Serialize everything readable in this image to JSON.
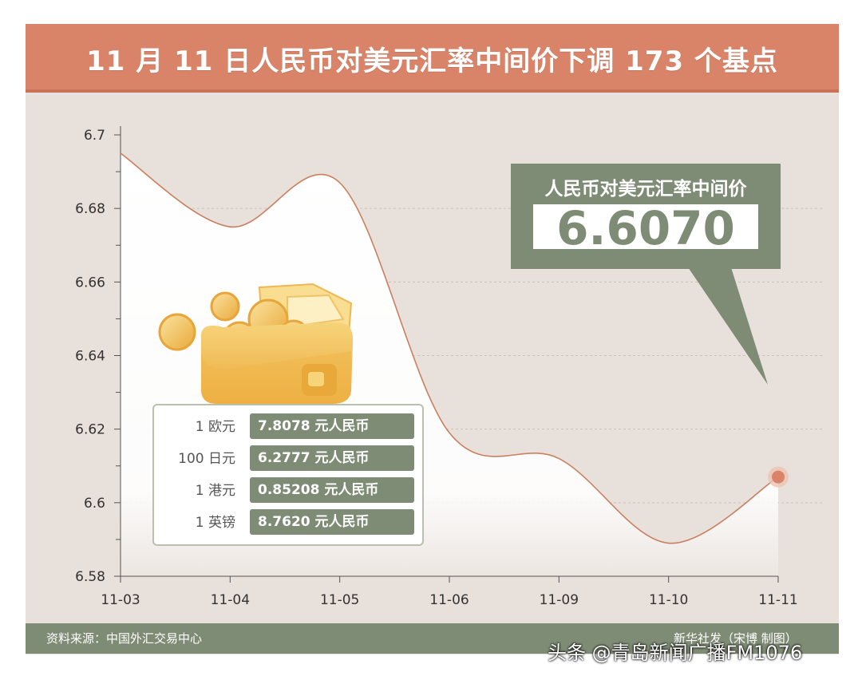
{
  "title": "11 月 11 日人民币对美元汇率中间价下调 173 个基点",
  "chart_data": {
    "type": "line",
    "categories": [
      "11-03",
      "11-04",
      "11-05",
      "11-06",
      "11-09",
      "11-10",
      "11-11"
    ],
    "values": [
      6.695,
      6.675,
      6.687,
      6.619,
      6.612,
      6.589,
      6.607
    ],
    "yticks": [
      "6.7",
      "6.68",
      "6.66",
      "6.64",
      "6.62",
      "6.6",
      "6.58"
    ],
    "ylim": [
      6.58,
      6.7
    ],
    "grid": true,
    "line_color": "#c9805f",
    "marker_color": "#d98369"
  },
  "callout": {
    "title": "人民币对美元汇率中间价",
    "value": "6.6070"
  },
  "rates": [
    {
      "label": "1 欧元",
      "value": "7.8078 元人民币"
    },
    {
      "label": "100 日元",
      "value": "6.2777 元人民币"
    },
    {
      "label": "1 港元",
      "value": "0.85208 元人民币"
    },
    {
      "label": "1 英镑",
      "value": "8.7620 元人民币"
    }
  ],
  "footer": {
    "source": "资料来源：中国外汇交易中心",
    "credit": "新华社发（宋博 制图）"
  },
  "watermark": "头条 @青岛新闻广播FM1076",
  "colors": {
    "title_bg": "#d98369",
    "panel_bg": "#e8e0da",
    "accent_green": "#7f8c75"
  }
}
